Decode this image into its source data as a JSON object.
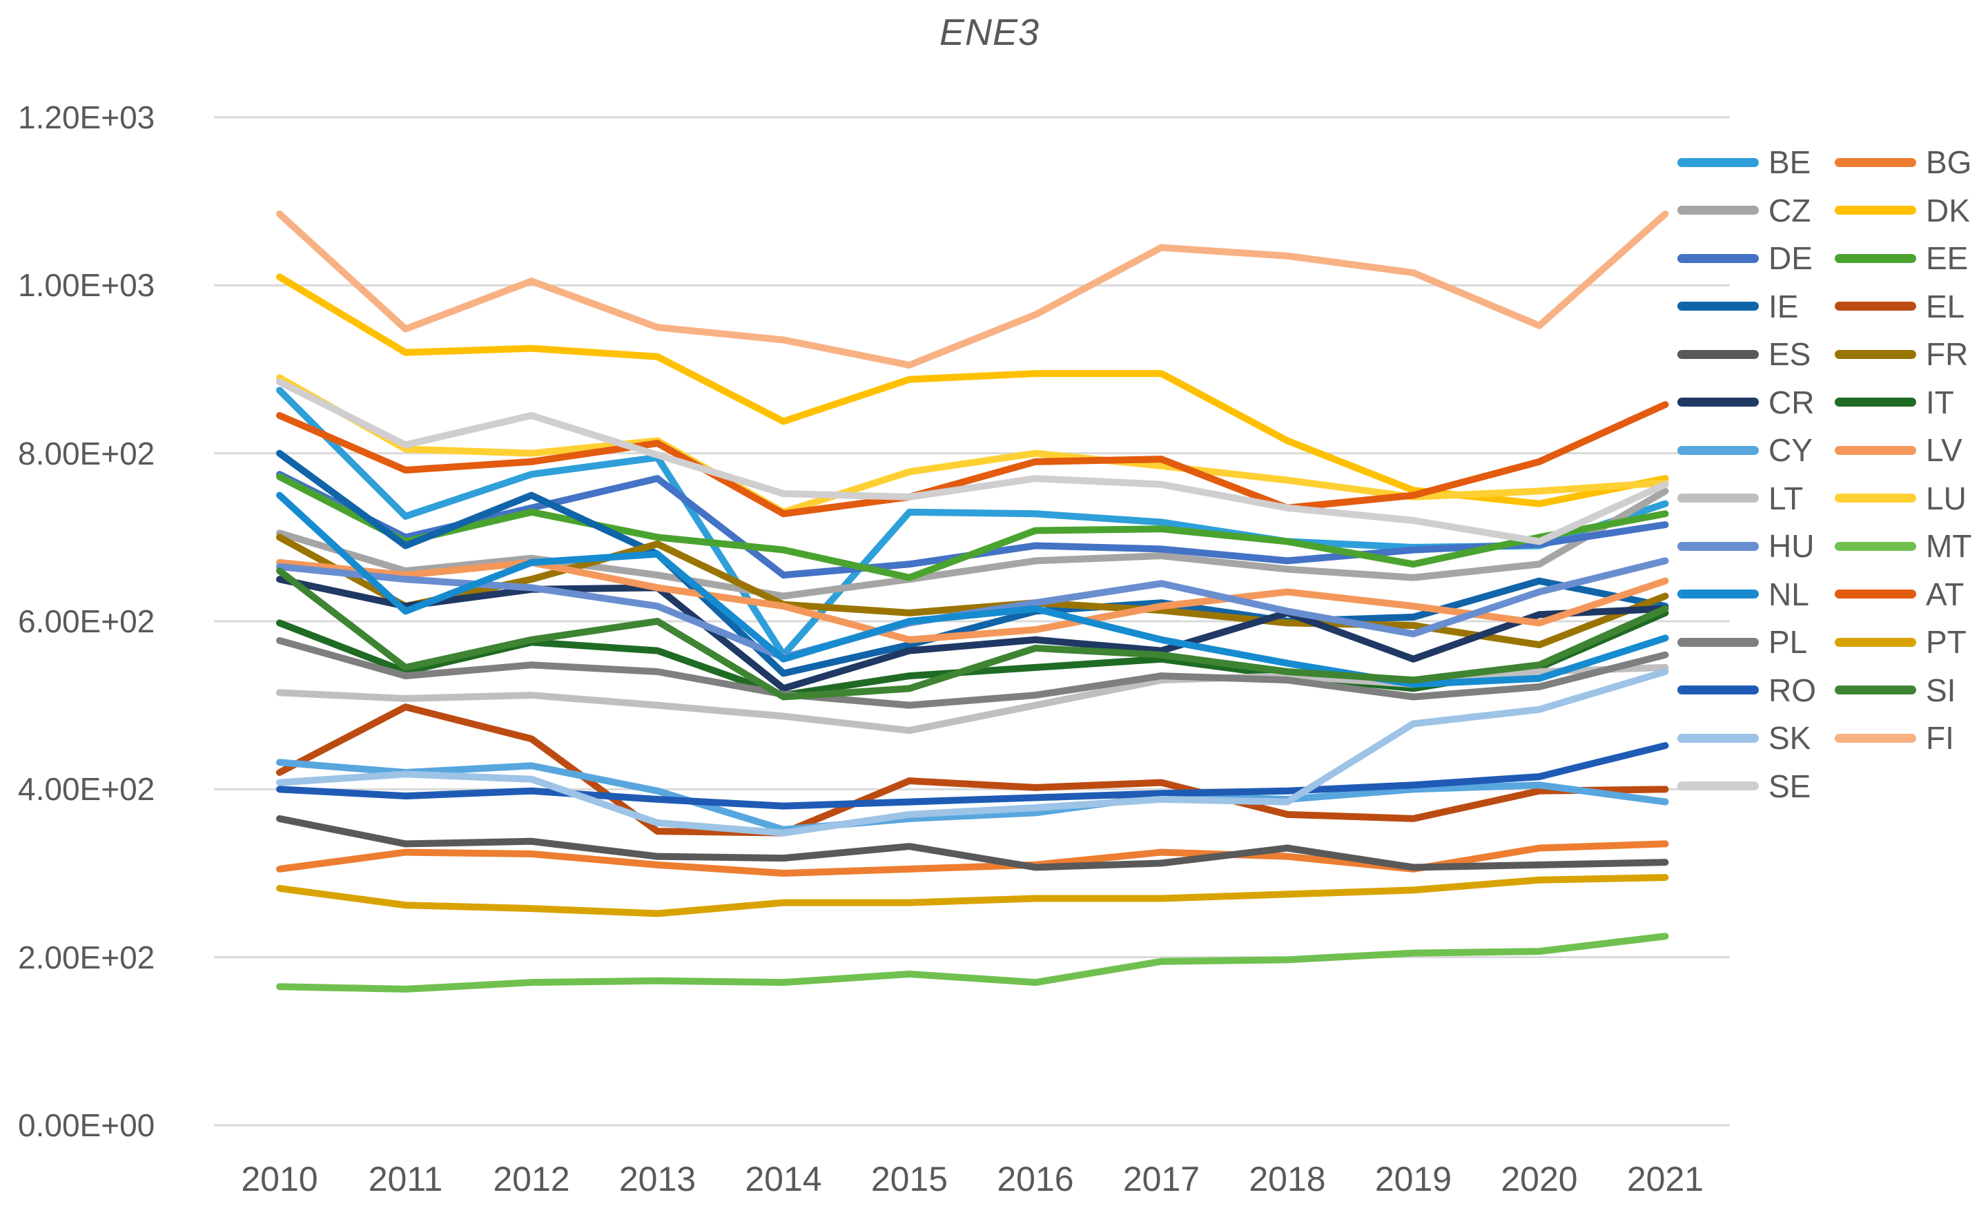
{
  "title": "ENE3",
  "colors": {
    "text": "#595959",
    "gridline": "#D9D9D9",
    "background": "#FFFFFF"
  },
  "y_axis": {
    "tick_labels": [
      "0.00E+00",
      "2.00E+02",
      "4.00E+02",
      "6.00E+02",
      "8.00E+02",
      "1.00E+03",
      "1.20E+03"
    ],
    "tick_values": [
      0,
      200,
      400,
      600,
      800,
      1000,
      1200
    ]
  },
  "x_axis": {
    "tick_labels": [
      "2010",
      "2011",
      "2012",
      "2013",
      "2014",
      "2015",
      "2016",
      "2017",
      "2018",
      "2019",
      "2020",
      "2021"
    ]
  },
  "chart_data": {
    "type": "line",
    "title": "ENE3",
    "xlabel": "",
    "ylabel": "",
    "x": [
      2010,
      2011,
      2012,
      2013,
      2014,
      2015,
      2016,
      2017,
      2018,
      2019,
      2020,
      2021
    ],
    "ylim": [
      0,
      1200
    ],
    "ytick_step": 200,
    "ytick_format": "scientific",
    "grid": true,
    "legend_position": "right, two columns",
    "series": [
      {
        "name": "BE",
        "color": "#2E9FD9",
        "values": [
          875,
          725,
          775,
          795,
          560,
          730,
          728,
          718,
          695,
          688,
          690,
          740
        ]
      },
      {
        "name": "BG",
        "color": "#ED7D31",
        "values": [
          305,
          325,
          323,
          310,
          300,
          305,
          310,
          325,
          320,
          305,
          330,
          335
        ]
      },
      {
        "name": "CZ",
        "color": "#A5A5A5",
        "values": [
          705,
          660,
          675,
          655,
          630,
          650,
          672,
          678,
          662,
          652,
          668,
          755
        ]
      },
      {
        "name": "DK",
        "color": "#FFC000",
        "values": [
          1010,
          920,
          925,
          915,
          838,
          888,
          895,
          895,
          815,
          756,
          740,
          770
        ]
      },
      {
        "name": "DE",
        "color": "#4472C4",
        "values": [
          775,
          700,
          735,
          770,
          655,
          668,
          690,
          686,
          672,
          685,
          692,
          715
        ]
      },
      {
        "name": "EE",
        "color": "#4BA32F",
        "values": [
          772,
          695,
          730,
          700,
          685,
          652,
          708,
          710,
          695,
          668,
          700,
          728
        ]
      },
      {
        "name": "IE",
        "color": "#1164A8",
        "values": [
          800,
          690,
          750,
          680,
          538,
          572,
          612,
          622,
          600,
          605,
          648,
          618
        ]
      },
      {
        "name": "EL",
        "color": "#BC4B12",
        "values": [
          420,
          498,
          460,
          350,
          348,
          410,
          402,
          408,
          370,
          365,
          398,
          400
        ]
      },
      {
        "name": "ES",
        "color": "#595959",
        "values": [
          365,
          335,
          338,
          320,
          318,
          332,
          307,
          312,
          330,
          307,
          310,
          313
        ]
      },
      {
        "name": "FR",
        "color": "#9A7400",
        "values": [
          700,
          618,
          650,
          692,
          620,
          610,
          622,
          613,
          598,
          595,
          572,
          630
        ]
      },
      {
        "name": "CR",
        "color": "#1F3864",
        "values": [
          650,
          618,
          638,
          640,
          520,
          565,
          578,
          565,
          610,
          555,
          608,
          615
        ]
      },
      {
        "name": "IT",
        "color": "#1F6B24",
        "values": [
          598,
          540,
          575,
          565,
          512,
          535,
          545,
          555,
          535,
          520,
          545,
          610
        ]
      },
      {
        "name": "CY",
        "color": "#58A6DE",
        "values": [
          432,
          420,
          428,
          398,
          352,
          365,
          372,
          392,
          388,
          400,
          405,
          385
        ]
      },
      {
        "name": "LV",
        "color": "#F4975A",
        "values": [
          670,
          655,
          670,
          640,
          618,
          578,
          590,
          618,
          635,
          618,
          598,
          648
        ]
      },
      {
        "name": "LT",
        "color": "#BFBFBF",
        "values": [
          515,
          508,
          512,
          500,
          487,
          470,
          500,
          530,
          535,
          525,
          540,
          545
        ]
      },
      {
        "name": "LU",
        "color": "#FFD033",
        "values": [
          890,
          805,
          800,
          815,
          730,
          778,
          800,
          785,
          768,
          748,
          755,
          765
        ]
      },
      {
        "name": "HU",
        "color": "#698ED0",
        "values": [
          665,
          650,
          640,
          618,
          557,
          598,
          622,
          645,
          612,
          585,
          635,
          672
        ]
      },
      {
        "name": "MT",
        "color": "#70C050",
        "values": [
          165,
          162,
          170,
          172,
          170,
          180,
          170,
          195,
          197,
          205,
          207,
          225
        ]
      },
      {
        "name": "NL",
        "color": "#168BD0",
        "values": [
          750,
          612,
          670,
          680,
          555,
          600,
          615,
          578,
          550,
          525,
          532,
          580
        ]
      },
      {
        "name": "AT",
        "color": "#E25B0E",
        "values": [
          845,
          780,
          790,
          812,
          728,
          748,
          790,
          793,
          735,
          750,
          790,
          858
        ]
      },
      {
        "name": "PL",
        "color": "#7F7F7F",
        "values": [
          577,
          535,
          548,
          540,
          513,
          500,
          512,
          535,
          530,
          510,
          522,
          560
        ]
      },
      {
        "name": "PT",
        "color": "#D8A300",
        "values": [
          282,
          262,
          258,
          252,
          265,
          265,
          270,
          270,
          275,
          280,
          292,
          295
        ]
      },
      {
        "name": "RO",
        "color": "#1F5BB5",
        "values": [
          400,
          392,
          398,
          388,
          380,
          385,
          390,
          395,
          398,
          405,
          415,
          452
        ]
      },
      {
        "name": "SI",
        "color": "#3E8432",
        "values": [
          660,
          545,
          578,
          600,
          510,
          520,
          568,
          560,
          540,
          530,
          548,
          615
        ]
      },
      {
        "name": "SK",
        "color": "#9DC3E6",
        "values": [
          408,
          418,
          412,
          360,
          348,
          370,
          378,
          388,
          385,
          478,
          495,
          540
        ]
      },
      {
        "name": "FI",
        "color": "#F8B183",
        "values": [
          1085,
          948,
          1005,
          950,
          935,
          905,
          965,
          1045,
          1035,
          1015,
          952,
          1085
        ]
      },
      {
        "name": "SE",
        "color": "#D0CECE",
        "values": [
          885,
          810,
          845,
          798,
          752,
          748,
          770,
          763,
          735,
          720,
          695,
          763
        ]
      }
    ]
  }
}
